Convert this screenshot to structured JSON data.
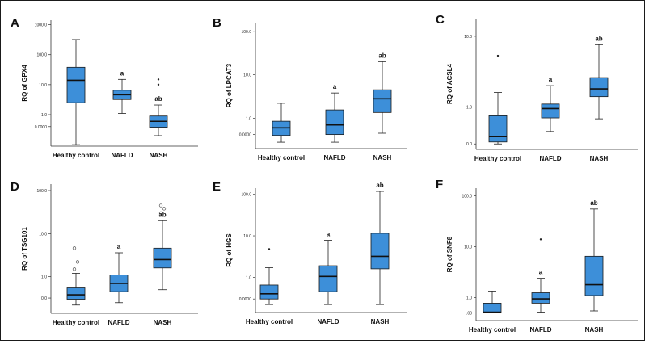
{
  "chart_data": [
    {
      "type": "box",
      "panel": "A",
      "ylabel": "RQ of GPX4",
      "scale": "log",
      "yticks": [
        "1000.0",
        "100.0",
        "10.0",
        "1.0",
        "0.0000"
      ],
      "categories": [
        "Healthy control",
        "NAFLD",
        "NASH"
      ],
      "boxes": [
        {
          "whisker_low": 0.1,
          "q1": 2.5,
          "median": 14,
          "q3": 38,
          "whisker_high": 320,
          "annotation": "",
          "outliers": []
        },
        {
          "whisker_low": 1.1,
          "q1": 3.2,
          "median": 4.6,
          "q3": 6.5,
          "whisker_high": 15,
          "annotation": "a",
          "outliers": []
        },
        {
          "whisker_low": 0.2,
          "q1": 0.38,
          "median": 0.6,
          "q3": 0.9,
          "whisker_high": 2.1,
          "annotation": "ab",
          "outliers": [
            10,
            15
          ]
        }
      ]
    },
    {
      "type": "box",
      "panel": "B",
      "ylabel": "RQ of LPCAT3",
      "scale": "log",
      "yticks": [
        "100.0",
        "10.0",
        "1.0",
        "0.0000"
      ],
      "categories": [
        "Healthy control",
        "NAFLD",
        "NASH"
      ],
      "boxes": [
        {
          "whisker_low": 0.28,
          "q1": 0.4,
          "median": 0.6,
          "q3": 0.85,
          "whisker_high": 2.2,
          "annotation": "",
          "outliers": []
        },
        {
          "whisker_low": 0.28,
          "q1": 0.42,
          "median": 0.7,
          "q3": 1.55,
          "whisker_high": 3.8,
          "annotation": "a",
          "outliers": []
        },
        {
          "whisker_low": 0.45,
          "q1": 1.35,
          "median": 2.8,
          "q3": 4.5,
          "whisker_high": 20,
          "annotation": "ab",
          "outliers": []
        }
      ]
    },
    {
      "type": "box",
      "panel": "C",
      "ylabel": "RQ of ACSL4",
      "scale": "log",
      "yticks": [
        "10.0",
        "1.0",
        "0.0"
      ],
      "categories": [
        "Healthy control",
        "NAFLD",
        "NASH"
      ],
      "boxes": [
        {
          "whisker_low": 0.3,
          "q1": 0.32,
          "median": 0.38,
          "q3": 0.75,
          "whisker_high": 1.6,
          "annotation": "",
          "outliers": [
            5.3
          ]
        },
        {
          "whisker_low": 0.45,
          "q1": 0.7,
          "median": 0.95,
          "q3": 1.1,
          "whisker_high": 2.0,
          "annotation": "a",
          "outliers": []
        },
        {
          "whisker_low": 0.68,
          "q1": 1.4,
          "median": 1.8,
          "q3": 2.6,
          "whisker_high": 7.6,
          "annotation": "ab",
          "outliers": []
        }
      ]
    },
    {
      "type": "box",
      "panel": "D",
      "ylabel": "RQ of TSG101",
      "scale": "log",
      "yticks": [
        "100.0",
        "10.0",
        "1.0",
        "0.0"
      ],
      "categories": [
        "Healthy control",
        "NAFLD",
        "NASH"
      ],
      "boxes": [
        {
          "whisker_low": 0.22,
          "q1": 0.3,
          "median": 0.38,
          "q3": 0.55,
          "whisker_high": 1.2,
          "annotation": "",
          "outliers": [
            1.5,
            2.2,
            4.6
          ]
        },
        {
          "whisker_low": 0.25,
          "q1": 0.45,
          "median": 0.7,
          "q3": 1.1,
          "whisker_high": 3.6,
          "annotation": "a",
          "outliers": []
        },
        {
          "whisker_low": 0.5,
          "q1": 1.6,
          "median": 2.5,
          "q3": 4.6,
          "whisker_high": 20,
          "annotation": "ab",
          "outliers": [
            30,
            38,
            45
          ]
        }
      ]
    },
    {
      "type": "box",
      "panel": "E",
      "ylabel": "RQ of HGS",
      "scale": "log",
      "yticks": [
        "100.0",
        "10.0",
        "1.0",
        "0.0000"
      ],
      "categories": [
        "Healthy control",
        "NAFLD",
        "NASH"
      ],
      "boxes": [
        {
          "whisker_low": 0.22,
          "q1": 0.3,
          "median": 0.4,
          "q3": 0.65,
          "whisker_high": 1.7,
          "annotation": "",
          "outliers": [
            4.8
          ]
        },
        {
          "whisker_low": 0.22,
          "q1": 0.45,
          "median": 1.05,
          "q3": 1.9,
          "whisker_high": 7.8,
          "annotation": "a",
          "outliers": []
        },
        {
          "whisker_low": 0.22,
          "q1": 1.6,
          "median": 3.2,
          "q3": 11.5,
          "whisker_high": 118,
          "annotation": "ab",
          "outliers": []
        }
      ]
    },
    {
      "type": "box",
      "panel": "F",
      "ylabel": "RQ of SNF8",
      "scale": "log",
      "yticks": [
        "100.0",
        "10.0",
        "1.0",
        ".00"
      ],
      "categories": [
        "Healthy control",
        "NAFLD",
        "NASH"
      ],
      "boxes": [
        {
          "whisker_low": 0.5,
          "q1": 0.5,
          "median": 0.52,
          "q3": 0.78,
          "whisker_high": 1.35,
          "annotation": "",
          "outliers": []
        },
        {
          "whisker_low": 0.52,
          "q1": 0.78,
          "median": 0.95,
          "q3": 1.25,
          "whisker_high": 2.4,
          "annotation": "a",
          "outliers": [
            14
          ]
        },
        {
          "whisker_low": 0.55,
          "q1": 1.1,
          "median": 1.8,
          "q3": 6.5,
          "whisker_high": 55,
          "annotation": "ab",
          "outliers": []
        }
      ]
    }
  ]
}
